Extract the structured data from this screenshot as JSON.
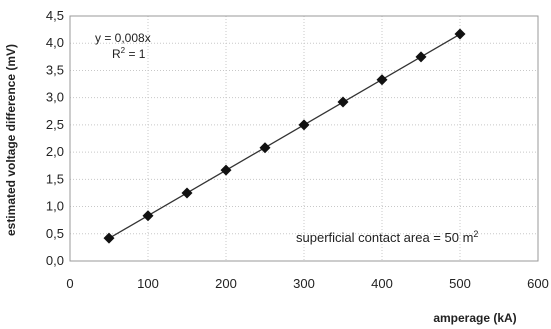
{
  "chart_data": {
    "type": "scatter",
    "xlabel": "amperage (kA)",
    "ylabel": "estimated voltage difference (mV)",
    "xlim": [
      0,
      600
    ],
    "ylim": [
      0,
      4.5
    ],
    "x_ticks": [
      "0",
      "100",
      "200",
      "300",
      "400",
      "500",
      "600"
    ],
    "y_ticks": [
      "0,0",
      "0,5",
      "1,0",
      "1,5",
      "2,0",
      "2,5",
      "3,0",
      "3,5",
      "4,0",
      "4,5"
    ],
    "grid": true,
    "marker": "diamond",
    "marker_color": "#111111",
    "line_color": "#333333",
    "series": [
      {
        "x": [
          50,
          100,
          150,
          200,
          250,
          300,
          350,
          400,
          450,
          500
        ],
        "y": [
          0.42,
          0.83,
          1.25,
          1.67,
          2.08,
          2.5,
          2.92,
          3.33,
          3.75,
          4.17
        ]
      }
    ],
    "trendline": {
      "slope": 0.008333,
      "x_range": [
        50,
        500
      ]
    },
    "annotations": {
      "equation": "y = 0,008x",
      "r_squared_prefix": "R",
      "r_squared_exp": "2",
      "r_squared_suffix": " = 1",
      "contact_prefix": "superficial contact area = 50 m",
      "contact_exp": "2"
    }
  }
}
